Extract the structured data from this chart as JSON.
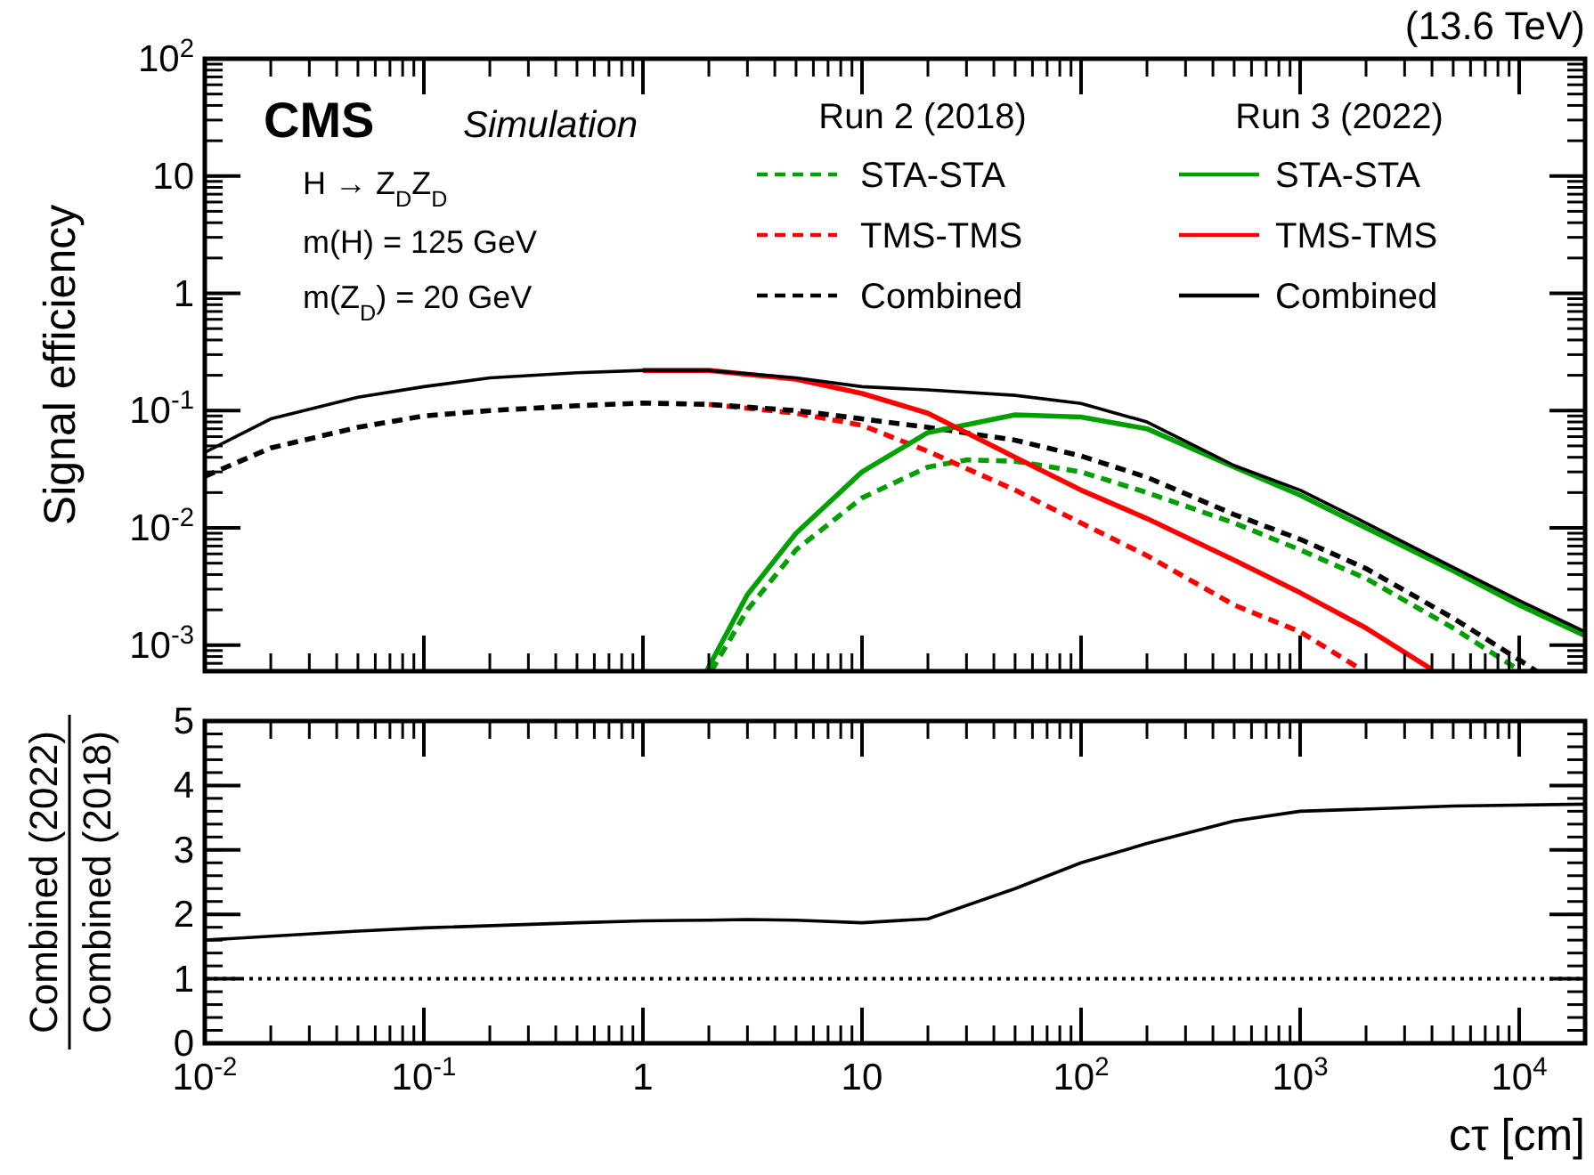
{
  "chart_data": [
    {
      "type": "line",
      "ylabel": "Signal efficiency",
      "log": "xy",
      "legend": "top right",
      "tick_labels": "y",
      "xlim": [
        0.01,
        20000
      ],
      "xticks": [
        {
          "value": 0.01,
          "label": null
        },
        {
          "value": 0.1,
          "label": null
        },
        {
          "value": 1,
          "label": null
        },
        {
          "value": 10,
          "label": null
        },
        {
          "value": 100,
          "label": null
        },
        {
          "value": 1000,
          "label": null
        },
        {
          "value": 10000,
          "label": null
        }
      ],
      "ylim": [
        0.0006,
        100
      ],
      "yticks": [
        {
          "value": 0.001,
          "label": "10$^{-3}$"
        },
        {
          "value": 0.01,
          "label": "10$^{-2}$"
        },
        {
          "value": 0.1,
          "label": "10$^{-1}$"
        },
        1,
        10,
        {
          "value": 100,
          "label": "10$^{2}$"
        }
      ],
      "annotations": [
        "(13.6 TeV)",
        "CMS",
        "Simulation",
        "H → Z$_{D}$Z$_{D}$",
        "m(H) = 125 GeV",
        "m(Z$_{D}$) = 20 GeV",
        "Run 2 (2018)",
        "Run 3 (2022)"
      ],
      "series": [
        {
          "name": "STA-STA",
          "color": "#00a000",
          "line_style": "dashed",
          "x": [
            2.05,
            3,
            5,
            10,
            20,
            30,
            50,
            100,
            200,
            500,
            1000,
            2000,
            5000,
            9500
          ],
          "values": [
            0.0006,
            0.002,
            0.0065,
            0.018,
            0.033,
            0.038,
            0.037,
            0.03,
            0.02,
            0.011,
            0.0065,
            0.0037,
            0.0014,
            0.00065
          ]
        },
        {
          "name": "TMS-TMS",
          "color": "#ff0000",
          "line_style": "dashed",
          "x": [
            2,
            5,
            10,
            20,
            50,
            100,
            200,
            500,
            1000,
            1900
          ],
          "values": [
            0.113,
            0.095,
            0.075,
            0.045,
            0.021,
            0.011,
            0.0058,
            0.0022,
            0.0013,
            0.00062
          ]
        },
        {
          "name": "Combined",
          "color": "#000000",
          "line_style": "dashed",
          "x": [
            0.01,
            0.02,
            0.05,
            0.1,
            0.2,
            0.5,
            1,
            2,
            5,
            10,
            20,
            50,
            100,
            200,
            500,
            1000,
            2000,
            5000,
            10000,
            12000
          ],
          "values": [
            0.0275,
            0.048,
            0.072,
            0.09,
            0.1,
            0.11,
            0.116,
            0.113,
            0.1,
            0.085,
            0.072,
            0.056,
            0.041,
            0.027,
            0.013,
            0.008,
            0.0045,
            0.0017,
            0.00075,
            0.0006
          ]
        },
        {
          "name": "STA-STA",
          "color": "#00a000",
          "line_style": "solid",
          "x": [
            1.95,
            3,
            5,
            10,
            20,
            50,
            100,
            200,
            500,
            1000,
            2000,
            5000,
            10000,
            20000
          ],
          "values": [
            0.0006,
            0.0027,
            0.009,
            0.03,
            0.065,
            0.092,
            0.088,
            0.07,
            0.033,
            0.019,
            0.01,
            0.0043,
            0.0022,
            0.0012
          ]
        },
        {
          "name": "TMS-TMS",
          "color": "#ff0000",
          "line_style": "solid",
          "x": [
            1,
            2,
            5,
            10,
            20,
            50,
            100,
            200,
            500,
            1000,
            2000,
            4000
          ],
          "values": [
            0.22,
            0.22,
            0.185,
            0.14,
            0.095,
            0.04,
            0.021,
            0.012,
            0.0053,
            0.0028,
            0.0014,
            0.00062
          ]
        },
        {
          "name": "Combined",
          "color": "#000000",
          "line_style": "solid",
          "x": [
            0.01,
            0.02,
            0.05,
            0.1,
            0.2,
            0.5,
            1,
            2,
            5,
            10,
            20,
            50,
            100,
            200,
            500,
            1000,
            2000,
            5000,
            10000,
            20000
          ],
          "values": [
            0.044,
            0.085,
            0.13,
            0.16,
            0.19,
            0.21,
            0.22,
            0.22,
            0.19,
            0.16,
            0.15,
            0.135,
            0.115,
            0.08,
            0.034,
            0.021,
            0.011,
            0.0046,
            0.0024,
            0.0013
          ]
        }
      ]
    },
    {
      "type": "line",
      "xlabel": "cτ [cm]",
      "ylabel": "Combined (2022)\nCombined (2018)",
      "log": "x",
      "xlim": [
        0.01,
        20000
      ],
      "xticks": [
        {
          "value": 0.01,
          "label": "10$^{-2}$"
        },
        {
          "value": 0.1,
          "label": "10$^{-1}$"
        },
        1,
        10,
        {
          "value": 100,
          "label": "10$^{2}$"
        },
        {
          "value": 1000,
          "label": "10$^{3}$"
        },
        {
          "value": 10000,
          "label": "10$^{4}$"
        }
      ],
      "ylim": [
        0,
        5
      ],
      "yticks": [
        0,
        1,
        2,
        3,
        4,
        5
      ],
      "ref_lines": [
        {
          "axis": "y",
          "value": 1,
          "color": "#000000",
          "line_style": "dotted"
        }
      ],
      "series": [
        {
          "color": "#000000",
          "line_style": "solid",
          "x": [
            0.01,
            0.02,
            0.05,
            0.1,
            0.5,
            1,
            2,
            3,
            5,
            10,
            20,
            50,
            100,
            200,
            500,
            1000,
            5000,
            20000
          ],
          "values": [
            1.6,
            1.66,
            1.74,
            1.79,
            1.87,
            1.9,
            1.91,
            1.92,
            1.91,
            1.87,
            1.93,
            2.4,
            2.8,
            3.1,
            3.45,
            3.6,
            3.68,
            3.71
          ]
        }
      ]
    }
  ]
}
